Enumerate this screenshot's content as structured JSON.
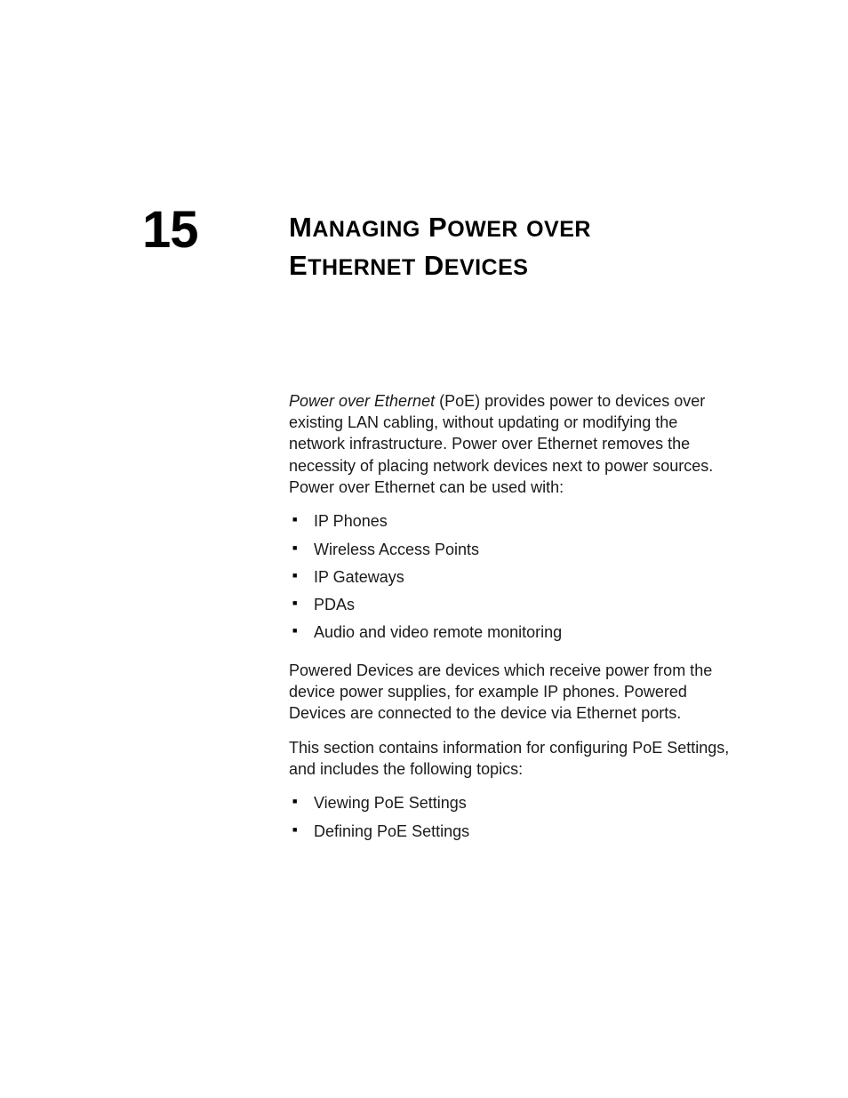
{
  "chapter": {
    "number": "15",
    "title_line1_lead": "M",
    "title_line1_rest": "ANAGING",
    "title_line1_word2_lead": "P",
    "title_line1_word2_rest": "OWER",
    "title_line1_word3_rest": "OVER",
    "title_line2_lead": "E",
    "title_line2_rest": "THERNET",
    "title_line2_word2_lead": "D",
    "title_line2_word2_rest": "EVICES"
  },
  "intro": {
    "italic_lead": "Power over Ethernet",
    "rest": " (PoE) provides power to devices over existing LAN cabling, without updating or modifying the network infrastructure. Power over Ethernet removes the necessity of placing network devices next to power sources. Power over Ethernet can be used with:"
  },
  "uses_list": {
    "items": [
      "IP Phones",
      "Wireless Access Points",
      "IP Gateways",
      "PDAs",
      "Audio and video remote monitoring"
    ]
  },
  "powered_devices_para": "Powered Devices are devices which receive power from the device power supplies, for example IP phones. Powered Devices are connected to the device via Ethernet ports.",
  "section_para": "This section contains information for configuring PoE Settings, and includes the following topics:",
  "topics_list": {
    "items": [
      "Viewing PoE Settings",
      "Defining PoE Settings"
    ]
  }
}
